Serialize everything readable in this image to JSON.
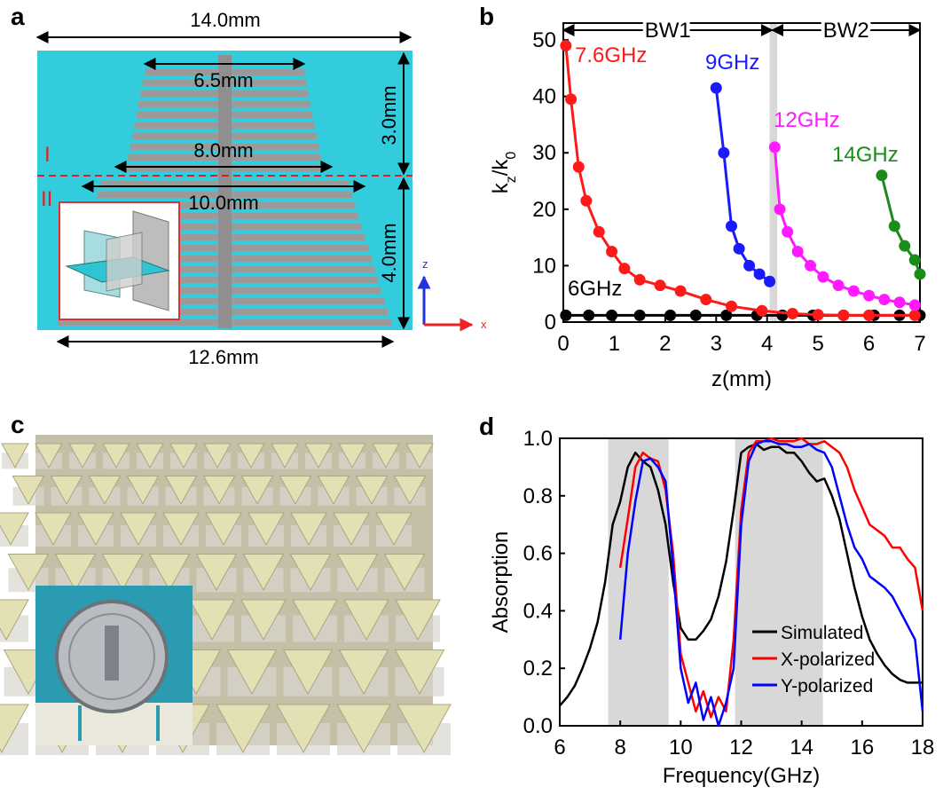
{
  "figure_a": {
    "panel_label": "a",
    "width_top": "14.0mm",
    "width_upper": "6.5mm",
    "width_mid": "8.0mm",
    "width_lower": "10.0mm",
    "width_bottom": "12.6mm",
    "height_upper": "3.0mm",
    "height_lower": "4.0mm",
    "region_upper": "I",
    "region_lower": "II",
    "axis_z": "z",
    "axis_x": "x"
  },
  "figure_c": {
    "panel_label": "c"
  },
  "chart_data": [
    {
      "type": "line",
      "panel_label": "b",
      "markers": true,
      "xlabel": "z(mm)",
      "ylabel": [
        "k",
        "z",
        "/k",
        "0"
      ],
      "xlim": [
        0,
        7
      ],
      "ylim": [
        0,
        53
      ],
      "xticks": [
        0,
        1,
        2,
        3,
        4,
        5,
        6,
        7
      ],
      "yticks": [
        0,
        10,
        20,
        30,
        40,
        50
      ],
      "shade": [
        [
          4.05,
          4.2
        ]
      ],
      "regions": [
        {
          "label": "BW1",
          "range": [
            0,
            4.1
          ]
        },
        {
          "label": "BW2",
          "range": [
            4.1,
            7
          ]
        }
      ],
      "series": [
        {
          "name": "6GHz",
          "color": "#000000",
          "x": [
            0.05,
            0.5,
            0.95,
            1.5,
            2.1,
            2.6,
            3.2,
            3.8,
            4.3,
            4.9,
            5.5,
            6.1,
            6.6,
            7
          ],
          "values": [
            1.2,
            1.2,
            1.2,
            1.2,
            1.2,
            1.2,
            1.2,
            1.2,
            1.2,
            1.2,
            1.2,
            1.2,
            1.2,
            1.2
          ]
        },
        {
          "name": "7.6GHz",
          "color": "#ff1a1a",
          "x": [
            0.05,
            0.15,
            0.3,
            0.45,
            0.7,
            0.95,
            1.2,
            1.5,
            1.9,
            2.3,
            2.8,
            3.3,
            3.9,
            4.5,
            5.0,
            5.5,
            6.0,
            6.9
          ],
          "values": [
            49,
            39.5,
            27.5,
            21.5,
            16,
            12.5,
            9.5,
            7.5,
            6.5,
            5.5,
            4,
            2.8,
            2,
            1.5,
            1.3,
            1.2,
            1.2,
            1.2
          ]
        },
        {
          "name": "9GHz",
          "color": "#1a1aff",
          "x": [
            3.0,
            3.15,
            3.3,
            3.45,
            3.65,
            3.85,
            4.05
          ],
          "values": [
            41.5,
            30,
            17,
            13,
            10,
            8.5,
            7.2
          ]
        },
        {
          "name": "12GHz",
          "color": "#ff1aff",
          "x": [
            4.15,
            4.25,
            4.4,
            4.6,
            4.85,
            5.1,
            5.4,
            5.7,
            6.0,
            6.3,
            6.6,
            6.9
          ],
          "values": [
            31,
            20,
            16,
            12.5,
            10,
            8,
            6.5,
            5.5,
            4.7,
            4,
            3.5,
            3
          ]
        },
        {
          "name": "14GHz",
          "color": "#1a8c1a",
          "x": [
            6.25,
            6.5,
            6.7,
            6.9,
            7.0
          ],
          "values": [
            26,
            17,
            13.5,
            11,
            8.5
          ]
        }
      ]
    },
    {
      "type": "line",
      "panel_label": "d",
      "markers": false,
      "xlabel": "Frequency(GHz)",
      "ylabel": [
        "Absorption"
      ],
      "xlim": [
        6,
        18
      ],
      "ylim": [
        0,
        1
      ],
      "xticks": [
        6,
        8,
        10,
        12,
        14,
        16,
        18
      ],
      "yticks": [
        {
          "value": 0,
          "label": "0.0"
        },
        0.2,
        0.4,
        0.6,
        0.8,
        {
          "value": 1,
          "label": "1.0"
        }
      ],
      "shade": [
        [
          7.6,
          9.6
        ],
        [
          11.8,
          14.7
        ]
      ],
      "legend": "lower right",
      "series": [
        {
          "name": "Simulated",
          "color": "#000000",
          "x": [
            6,
            6.25,
            6.5,
            6.75,
            7,
            7.25,
            7.5,
            7.75,
            8,
            8.25,
            8.5,
            8.75,
            9,
            9.25,
            9.5,
            9.75,
            10,
            10.25,
            10.5,
            10.75,
            11,
            11.25,
            11.5,
            11.75,
            12,
            12.25,
            12.5,
            12.75,
            13,
            13.25,
            13.5,
            13.75,
            14,
            14.25,
            14.5,
            14.75,
            15,
            15.25,
            15.5,
            15.75,
            16,
            16.25,
            16.5,
            16.75,
            17,
            17.25,
            17.5,
            17.75,
            18
          ],
          "values": [
            0.07,
            0.1,
            0.14,
            0.2,
            0.27,
            0.36,
            0.5,
            0.7,
            0.78,
            0.9,
            0.95,
            0.92,
            0.9,
            0.82,
            0.7,
            0.5,
            0.34,
            0.3,
            0.3,
            0.33,
            0.37,
            0.45,
            0.57,
            0.75,
            0.95,
            0.97,
            0.98,
            0.96,
            0.97,
            0.97,
            0.95,
            0.95,
            0.92,
            0.88,
            0.85,
            0.86,
            0.8,
            0.72,
            0.6,
            0.48,
            0.38,
            0.3,
            0.25,
            0.21,
            0.18,
            0.16,
            0.15,
            0.15,
            0.15
          ]
        },
        {
          "name": "X-polarized",
          "color": "#ff0000",
          "x": [
            8,
            8.25,
            8.5,
            8.75,
            9,
            9.25,
            9.5,
            9.75,
            10,
            10.25,
            10.5,
            10.75,
            11,
            11.25,
            11.5,
            11.75,
            12,
            12.25,
            12.5,
            12.75,
            13,
            13.25,
            13.5,
            13.75,
            14,
            14.25,
            14.5,
            14.75,
            15,
            15.25,
            15.5,
            15.75,
            16,
            16.25,
            16.5,
            16.75,
            17,
            17.25,
            17.5,
            17.75,
            18
          ],
          "values": [
            0.55,
            0.72,
            0.9,
            0.95,
            0.93,
            0.92,
            0.82,
            0.6,
            0.25,
            0.15,
            0.05,
            0.12,
            0.03,
            0.1,
            0.05,
            0.3,
            0.75,
            0.95,
            0.99,
            0.99,
            1.0,
            0.99,
            0.99,
            0.99,
            1.0,
            0.98,
            0.98,
            0.99,
            0.97,
            0.95,
            0.9,
            0.82,
            0.76,
            0.7,
            0.68,
            0.66,
            0.62,
            0.62,
            0.58,
            0.55,
            0.4
          ]
        },
        {
          "name": "Y-polarized",
          "color": "#0000ff",
          "x": [
            8,
            8.25,
            8.5,
            8.75,
            9,
            9.25,
            9.5,
            9.75,
            10,
            10.25,
            10.5,
            10.75,
            11,
            11.25,
            11.5,
            11.75,
            12,
            12.25,
            12.5,
            12.75,
            13,
            13.25,
            13.5,
            13.75,
            14,
            14.25,
            14.5,
            14.75,
            15,
            15.25,
            15.5,
            15.75,
            16,
            16.25,
            16.5,
            16.75,
            17,
            17.25,
            17.5,
            17.75,
            18
          ],
          "values": [
            0.3,
            0.6,
            0.78,
            0.92,
            0.93,
            0.9,
            0.85,
            0.55,
            0.2,
            0.08,
            0.15,
            0.02,
            0.1,
            0.0,
            0.08,
            0.2,
            0.7,
            0.92,
            0.98,
            0.99,
            0.99,
            0.98,
            0.98,
            0.97,
            0.97,
            0.98,
            0.96,
            0.95,
            0.9,
            0.8,
            0.7,
            0.62,
            0.58,
            0.52,
            0.5,
            0.48,
            0.45,
            0.4,
            0.35,
            0.3,
            0.05
          ]
        }
      ]
    }
  ]
}
